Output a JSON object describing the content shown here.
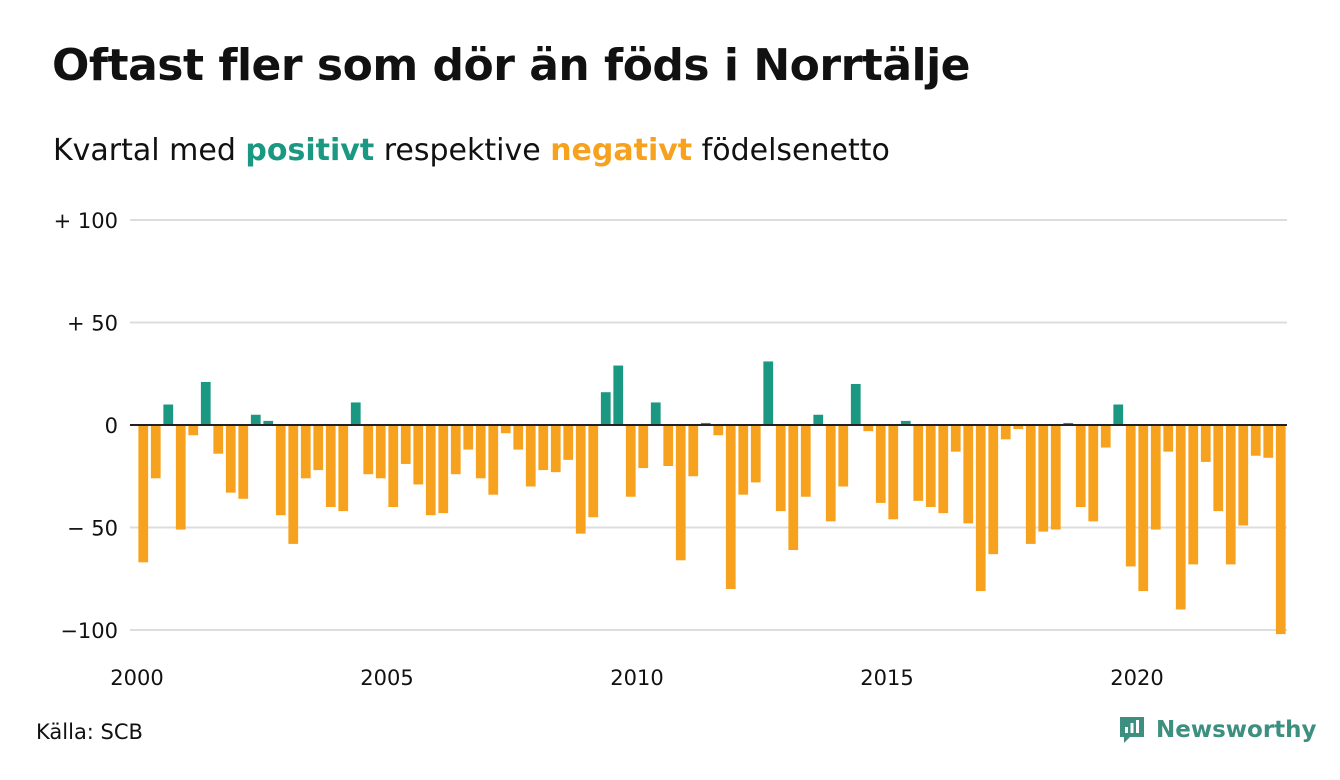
{
  "title": "Oftast fler som dör än föds i Norrtälje",
  "subtitle": {
    "prefix": "Kvartal med ",
    "positive_word": "positivt",
    "middle": " respektive ",
    "negative_word": "negativt",
    "suffix": " födelsenetto"
  },
  "source": "Källa: SCB",
  "brand": {
    "name": "Newsworthy",
    "icon": "newsworthy-logo-icon"
  },
  "colors": {
    "positive": "#1b9882",
    "negative": "#f6a21e",
    "grid": "#dddddd",
    "zero_line": "#222222",
    "brand": "#3d8f80"
  },
  "chart_data": {
    "type": "bar",
    "ylim": [
      -100,
      100
    ],
    "y_ticks": [
      {
        "value": 100,
        "label": "+ 100"
      },
      {
        "value": 50,
        "label": "+  50"
      },
      {
        "value": 0,
        "label": "0"
      },
      {
        "value": -50,
        "label": "− 50"
      },
      {
        "value": -100,
        "label": "−100"
      }
    ],
    "x_ticks": [
      "2000",
      "2005",
      "2010",
      "2015",
      "2020"
    ],
    "start_year": 2000,
    "end_year": 2023,
    "values": [
      -67,
      -26,
      10,
      -51,
      -5,
      21,
      -14,
      -33,
      -36,
      5,
      2,
      -44,
      -58,
      -26,
      -22,
      -40,
      -42,
      11,
      -24,
      -26,
      -40,
      -19,
      -29,
      -44,
      -43,
      -24,
      -12,
      -26,
      -34,
      -4,
      -12,
      -30,
      -22,
      -23,
      -17,
      -53,
      -45,
      16,
      29,
      -35,
      -21,
      11,
      -20,
      -66,
      -25,
      1,
      -5,
      -80,
      -34,
      -28,
      31,
      -42,
      -61,
      -35,
      5,
      -47,
      -30,
      20,
      -3,
      -38,
      -46,
      2,
      -37,
      -40,
      -43,
      -13,
      -48,
      -81,
      -63,
      -7,
      -2,
      -58,
      -52,
      -51,
      1,
      -40,
      -47,
      -11,
      10,
      -69,
      -81,
      -51,
      -13,
      -90,
      -68,
      -18,
      -42,
      -68,
      -49,
      -15,
      -16,
      -102
    ]
  }
}
